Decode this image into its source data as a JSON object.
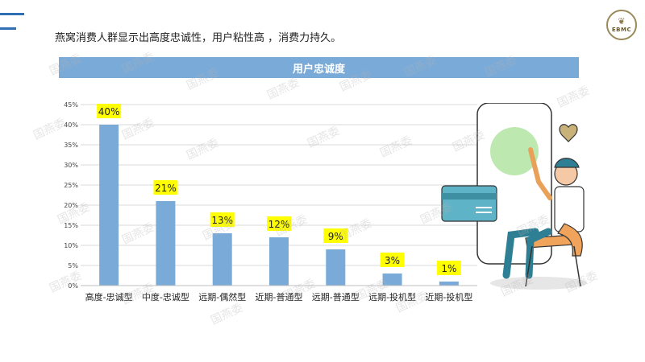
{
  "headline": "燕窝消费人群显示出高度忠诚性，用户粘性高 ，消费力持久。",
  "logo": {
    "text": "EBMC"
  },
  "watermark_text": "国燕委",
  "chart_data": {
    "type": "bar",
    "title": "用户忠诚度",
    "categories": [
      "高度-忠诚型",
      "中度-忠诚型",
      "远期-偶然型",
      "近期-普通型",
      "远期-普通型",
      "远期-投机型",
      "近期-投机型"
    ],
    "values": [
      40,
      21,
      13,
      12,
      9,
      3,
      1
    ],
    "data_labels": [
      "40%",
      "21%",
      "13%",
      "12%",
      "9%",
      "3%",
      "1%"
    ],
    "y_ticks": [
      "0%",
      "5%",
      "10%",
      "15%",
      "20%",
      "25%",
      "30%",
      "35%",
      "40%",
      "45%"
    ],
    "ylim": [
      0,
      45
    ],
    "grid": true,
    "legend": "none",
    "colors": {
      "bar": "#7aaad8",
      "label_bg": "#ffff00",
      "banner": "#7aaad8",
      "grid": "#d9d9d9"
    }
  }
}
